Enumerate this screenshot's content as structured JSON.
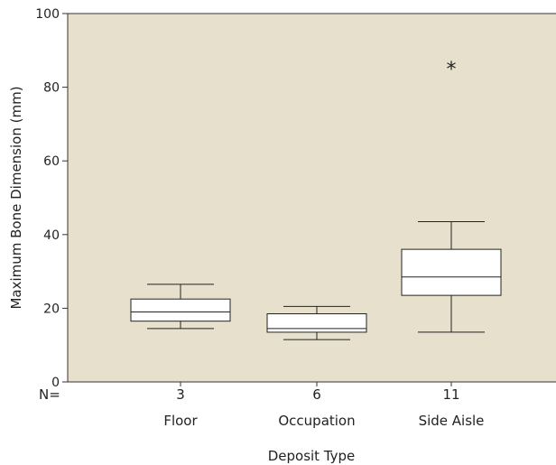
{
  "chart_data": {
    "type": "boxplot",
    "xlabel": "Deposit Type",
    "ylabel": "Maximum Bone Dimension (mm)",
    "ylim": [
      0,
      100
    ],
    "yticks": [
      0,
      20,
      40,
      60,
      80,
      100
    ],
    "n_prefix": "N=",
    "categories": [
      "Floor",
      "Occupation",
      "Side Aisle"
    ],
    "n_values": [
      "3",
      "6",
      "11"
    ],
    "boxes": [
      {
        "category": "Floor",
        "n": 3,
        "min": 14.5,
        "q1": 16.5,
        "median": 19,
        "q3": 22.5,
        "max": 26.5,
        "outliers": []
      },
      {
        "category": "Occupation",
        "n": 6,
        "min": 11.5,
        "q1": 13.5,
        "median": 14.5,
        "q3": 18.5,
        "max": 20.5,
        "outliers": []
      },
      {
        "category": "Side Aisle",
        "n": 11,
        "min": 13.5,
        "q1": 23.5,
        "median": 28.5,
        "q3": 36,
        "max": 43.5,
        "outliers": [
          86.5
        ]
      }
    ],
    "outlier_marker": "*",
    "plot_background": "#e6e0cd",
    "grid": false,
    "legend": "none"
  }
}
